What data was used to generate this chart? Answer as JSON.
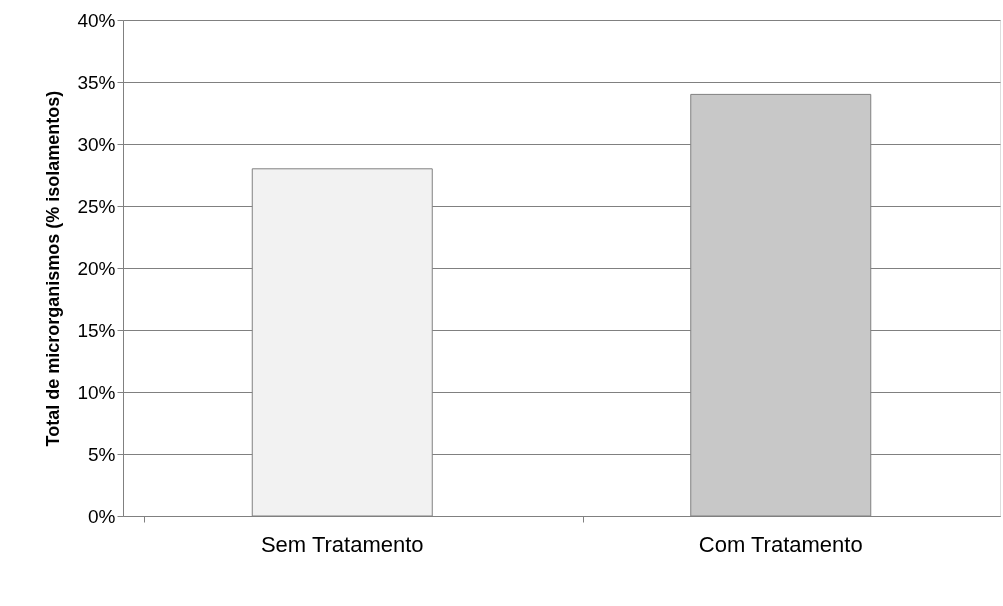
{
  "chart_data": {
    "type": "bar",
    "ylabel": "Total de microrganismos (% isolamentos)",
    "categories": [
      "Sem Tratamento",
      "Com Tratamento"
    ],
    "values": [
      28,
      34
    ],
    "colors": [
      "#f2f2f2",
      "#c8c8c8"
    ],
    "ylim": [
      0,
      40
    ],
    "yticks": [
      {
        "value": 0,
        "label": "0%"
      },
      {
        "value": 5,
        "label": "5%"
      },
      {
        "value": 10,
        "label": "10%"
      },
      {
        "value": 15,
        "label": "15%"
      },
      {
        "value": 20,
        "label": "20%"
      },
      {
        "value": 25,
        "label": "25%"
      },
      {
        "value": 30,
        "label": "30%"
      },
      {
        "value": 35,
        "label": "35%"
      },
      {
        "value": 40,
        "label": "40%"
      }
    ],
    "grid": "y"
  }
}
